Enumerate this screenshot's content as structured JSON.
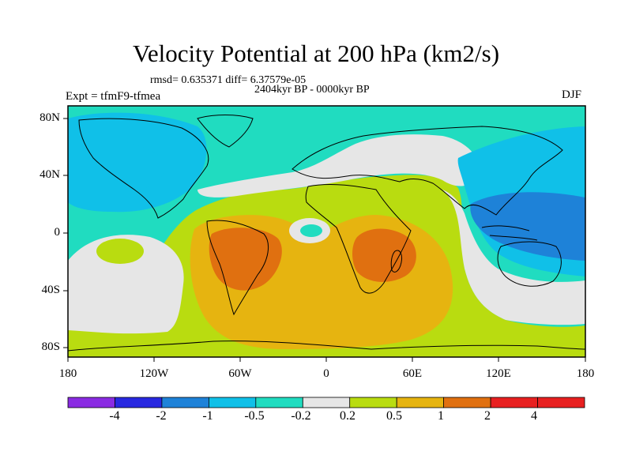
{
  "title": "Velocity Potential at 200 hPa (km2/s)",
  "stats": "rmsd= 0.635371 diff= 6.37579e-05",
  "period": "2404kyr BP - 0000kyr BP",
  "experiment": "Expt = tfmF9-tfmea",
  "season": "DJF",
  "lat_ticks": [
    "80N",
    "40N",
    "0",
    "40S",
    "80S"
  ],
  "lon_ticks": [
    "180",
    "120W",
    "60W",
    "0",
    "60E",
    "120E",
    "180"
  ],
  "colorbar": {
    "labels": [
      "-4",
      "-2",
      "-1",
      "-0.5",
      "-0.2",
      "0.2",
      "0.5",
      "1",
      "2",
      "4"
    ],
    "colors": [
      "#8a2be2",
      "#2828e0",
      "#1e82d8",
      "#10c0e8",
      "#20dcc0",
      "#e6e6e6",
      "#b9dc10",
      "#e6b410",
      "#e07010",
      "#e82020"
    ]
  },
  "map_colors": {
    "cyan": "#20dcc0",
    "light_blue": "#10c0e8",
    "blue": "#1e82d8",
    "neutral": "#e6e6e6",
    "lime": "#b9dc10",
    "gold": "#e6b410",
    "orange": "#e07010"
  }
}
